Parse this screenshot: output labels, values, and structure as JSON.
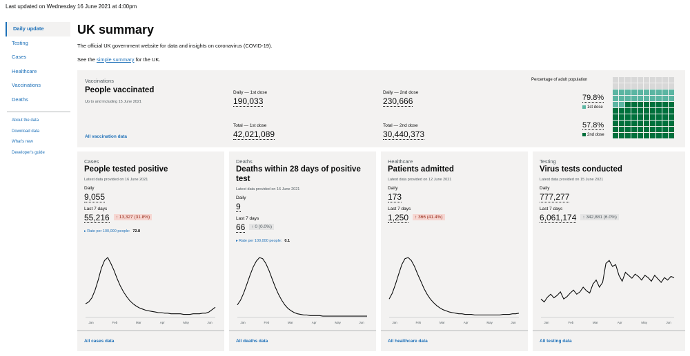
{
  "updated": "Last updated on Wednesday 16 June 2021 at 4:00pm",
  "nav": {
    "items": [
      "Daily update",
      "Testing",
      "Cases",
      "Healthcare",
      "Vaccinations",
      "Deaths"
    ],
    "sub": [
      "About the data",
      "Download data",
      "What's new",
      "Developer's guide"
    ]
  },
  "page": {
    "title": "UK summary",
    "intro": "The official UK government website for data and insights on coronavirus (COVID-19).",
    "see_prefix": "See the ",
    "see_link": "simple summary",
    "see_suffix": " for the UK."
  },
  "vaccinations": {
    "category": "Vaccinations",
    "title": "People vaccinated",
    "subtitle": "Up to and including 15 June 2021",
    "daily_first_label": "Daily — 1st dose",
    "daily_first_value": "190,033",
    "daily_second_label": "Daily — 2nd dose",
    "daily_second_value": "230,666",
    "total_first_label": "Total — 1st dose",
    "total_first_value": "42,021,089",
    "total_second_label": "Total — 2nd dose",
    "total_second_value": "30,440,373",
    "link": "All vaccination data",
    "pct_label": "Percentage of adult population",
    "first_pct": "79.8%",
    "first_legend": "1st dose",
    "second_pct": "57.8%",
    "second_legend": "2nd dose",
    "first_fraction": 0.798,
    "second_fraction": 0.578,
    "colors": {
      "empty": "#d8d8d8",
      "first": "#5bb5a2",
      "second": "#00703c"
    }
  },
  "cards": [
    {
      "category": "Cases",
      "title": "People tested positive",
      "subtitle": "Latest data provided on 16 June 2021",
      "daily_label": "Daily",
      "daily_value": "9,055",
      "week_label": "Last 7 days",
      "week_value": "55,216",
      "change": "↑ 13,327 (31.8%)",
      "change_style": "red",
      "rate_label": "Rate per 100,000 people:",
      "rate_value": "72.8",
      "link": "All cases data",
      "ticks": [
        "Jan",
        "Feb",
        "Mar",
        "Apr",
        "May",
        "Jun"
      ],
      "series": [
        0.22,
        0.25,
        0.32,
        0.45,
        0.62,
        0.82,
        0.95,
        1.0,
        0.9,
        0.78,
        0.64,
        0.52,
        0.42,
        0.34,
        0.27,
        0.22,
        0.18,
        0.15,
        0.13,
        0.11,
        0.1,
        0.09,
        0.08,
        0.07,
        0.07,
        0.06,
        0.06,
        0.05,
        0.05,
        0.05,
        0.05,
        0.04,
        0.04,
        0.04,
        0.05,
        0.05,
        0.05,
        0.06,
        0.06,
        0.08,
        0.12,
        0.16
      ]
    },
    {
      "category": "Deaths",
      "title": "Deaths within 28 days of positive test",
      "subtitle": "Latest data provided on 16 June 2021",
      "daily_label": "Daily",
      "daily_value": "9",
      "week_label": "Last 7 days",
      "week_value": "66",
      "change": "↑ 0 (0.0%)",
      "change_style": "grey",
      "rate_label": "Rate per 100,000 people:",
      "rate_value": "0.1",
      "link": "All deaths data",
      "ticks": [
        "Jan",
        "Feb",
        "Mar",
        "Apr",
        "May",
        "Jun"
      ],
      "series": [
        0.2,
        0.28,
        0.4,
        0.55,
        0.7,
        0.84,
        0.94,
        1.0,
        0.98,
        0.9,
        0.78,
        0.64,
        0.5,
        0.38,
        0.28,
        0.2,
        0.14,
        0.1,
        0.07,
        0.05,
        0.04,
        0.03,
        0.03,
        0.02,
        0.02,
        0.02,
        0.02,
        0.01,
        0.01,
        0.01,
        0.01,
        0.01,
        0.01,
        0.01,
        0.01,
        0.01,
        0.01,
        0.01,
        0.01,
        0.01,
        0.01,
        0.01
      ]
    },
    {
      "category": "Healthcare",
      "title": "Patients admitted",
      "subtitle": "Latest data provided on 12 June 2021",
      "daily_label": "Daily",
      "daily_value": "173",
      "week_label": "Last 7 days",
      "week_value": "1,250",
      "change": "↑ 366 (41.4%)",
      "change_style": "red",
      "rate_label": "",
      "rate_value": "",
      "link": "All healthcare data",
      "ticks": [
        "Jan",
        "Feb",
        "Mar",
        "Apr",
        "May",
        "Jun"
      ],
      "series": [
        0.3,
        0.4,
        0.55,
        0.72,
        0.88,
        0.98,
        1.0,
        0.95,
        0.85,
        0.72,
        0.6,
        0.48,
        0.38,
        0.3,
        0.24,
        0.19,
        0.15,
        0.12,
        0.1,
        0.08,
        0.07,
        0.06,
        0.05,
        0.05,
        0.04,
        0.04,
        0.04,
        0.03,
        0.03,
        0.03,
        0.03,
        0.03,
        0.03,
        0.03,
        0.03,
        0.03,
        0.04,
        0.04,
        0.04,
        0.05,
        0.05,
        0.06
      ]
    },
    {
      "category": "Testing",
      "title": "Virus tests conducted",
      "subtitle": "Latest data provided on 15 June 2021",
      "daily_label": "Daily",
      "daily_value": "777,277",
      "week_label": "Last 7 days",
      "week_value": "6,061,174",
      "change": "↑ 342,881 (6.0%)",
      "change_style": "grey",
      "rate_label": "",
      "rate_value": "",
      "link": "All testing data",
      "ticks": [
        "Jan",
        "Feb",
        "Mar",
        "Apr",
        "May",
        "Jun"
      ],
      "series": [
        0.3,
        0.25,
        0.33,
        0.38,
        0.32,
        0.36,
        0.42,
        0.3,
        0.34,
        0.4,
        0.45,
        0.38,
        0.42,
        0.5,
        0.44,
        0.4,
        0.55,
        0.62,
        0.5,
        0.58,
        0.9,
        0.95,
        0.85,
        0.88,
        0.7,
        0.6,
        0.75,
        0.7,
        0.65,
        0.72,
        0.68,
        0.62,
        0.7,
        0.66,
        0.6,
        0.7,
        0.64,
        0.58,
        0.66,
        0.62,
        0.68,
        0.66
      ]
    }
  ]
}
